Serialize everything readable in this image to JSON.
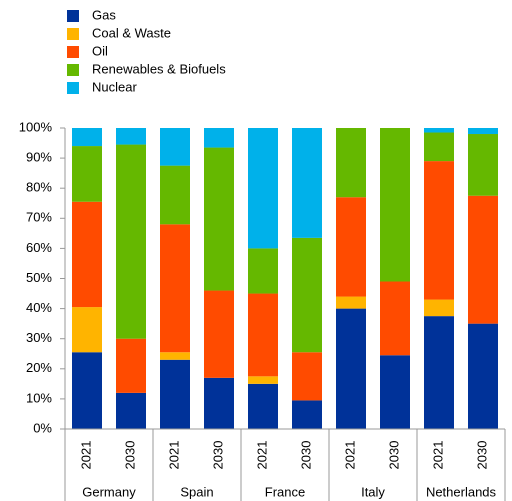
{
  "chart_data": {
    "type": "stacked_bar",
    "categories": [
      "2021",
      "2030",
      "2021",
      "2030",
      "2021",
      "2030",
      "2021",
      "2030",
      "2021",
      "2030"
    ],
    "groups": [
      "Germany",
      "Spain",
      "France",
      "Italy",
      "Netherlands"
    ],
    "series": [
      {
        "name": "Gas",
        "color": "#003299",
        "values": [
          25.5,
          12,
          23,
          17,
          15,
          9.5,
          40,
          24.5,
          37.5,
          35
        ]
      },
      {
        "name": "Coal & Waste",
        "color": "#ffb400",
        "values": [
          15,
          0,
          2.5,
          0,
          2.5,
          0,
          4,
          0,
          5.5,
          0
        ]
      },
      {
        "name": "Oil",
        "color": "#ff4b00",
        "values": [
          35,
          18,
          42.5,
          29,
          27.5,
          16,
          33,
          24.5,
          46,
          42.5
        ]
      },
      {
        "name": "Renewables & Biofuels",
        "color": "#65b800",
        "values": [
          18.5,
          64.5,
          19.5,
          47.5,
          15,
          38,
          23,
          51,
          9.5,
          20.5
        ]
      },
      {
        "name": "Nuclear",
        "color": "#00b1ea",
        "values": [
          6,
          5.5,
          12.5,
          6.5,
          40,
          36.5,
          0,
          0,
          1.5,
          2
        ]
      }
    ],
    "ylim": [
      0,
      100
    ],
    "yticks": [
      {
        "value": 0,
        "label": "0%"
      },
      {
        "value": 10,
        "label": "10%"
      },
      {
        "value": 20,
        "label": "20%"
      },
      {
        "value": 30,
        "label": "30%"
      },
      {
        "value": 40,
        "label": "40%"
      },
      {
        "value": 50,
        "label": "50%"
      },
      {
        "value": 60,
        "label": "60%"
      },
      {
        "value": 70,
        "label": "70%"
      },
      {
        "value": 80,
        "label": "80%"
      },
      {
        "value": 90,
        "label": "90%"
      },
      {
        "value": 100,
        "label": "100%"
      }
    ]
  }
}
